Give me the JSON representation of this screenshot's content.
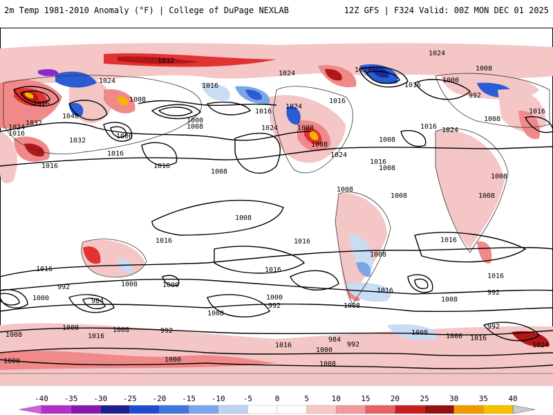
{
  "header": {
    "left_title": "2m Temp 1981-2010 Anomaly (°F) | College of DuPage NEXLAB",
    "right_title": "12Z GFS | F324 Valid: 00Z MON DEC 01 2025"
  },
  "map": {
    "isobar_labels": [
      "1024",
      "1032",
      "1024",
      "1024",
      "1008",
      "1016",
      "1024",
      "1016",
      "1000",
      "992",
      "1016",
      "1016",
      "1024",
      "1008",
      "1040",
      "1032",
      "1008",
      "1032",
      "1000",
      "1016",
      "1024",
      "1000",
      "1008",
      "1016",
      "1008",
      "1024",
      "1016",
      "1016",
      "1016",
      "1008",
      "1008",
      "1008",
      "1024",
      "1008",
      "1016",
      "1008",
      "1016",
      "1008",
      "1016",
      "1008",
      "1000",
      "1008",
      "1016",
      "1016",
      "1016",
      "1008",
      "1016",
      "1016",
      "1016",
      "1000",
      "1016",
      "1008",
      "1008",
      "1008",
      "992",
      "1000",
      "984",
      "992",
      "1000",
      "992",
      "1008",
      "1008",
      "1000",
      "1016",
      "1008",
      "992",
      "1000",
      "1016",
      "984",
      "992",
      "1008",
      "1000",
      "1016",
      "1000",
      "1008",
      "1000",
      "1024",
      "1024",
      "992"
    ],
    "colors": {
      "warm_light": "#f4c6c6",
      "warm_mid": "#f08a8a",
      "warm_strong": "#e23232",
      "warm_dark": "#b01818",
      "warm_extreme": "#f7b500",
      "cold_light": "#c8dcf4",
      "cold_mid": "#7aa6e6",
      "cold_strong": "#2a5cd4",
      "cold_dark": "#1a2a9a",
      "cold_purple": "#8a2acc"
    }
  },
  "colorbar": {
    "ticks": [
      "-40",
      "-35",
      "-30",
      "-25",
      "-20",
      "-15",
      "-10",
      "-5",
      "0",
      "5",
      "10",
      "15",
      "20",
      "25",
      "30",
      "35",
      "40"
    ],
    "colors": [
      "#d65ce0",
      "#b030c8",
      "#8a18b0",
      "#1e1e8c",
      "#1f4ccc",
      "#3f76e0",
      "#7ea6ea",
      "#bcd4f2",
      "#ffffff",
      "#ffffff",
      "#f6c8c8",
      "#f09a9a",
      "#e86060",
      "#c81e1e",
      "#961010",
      "#f29a00",
      "#f5c200"
    ]
  }
}
